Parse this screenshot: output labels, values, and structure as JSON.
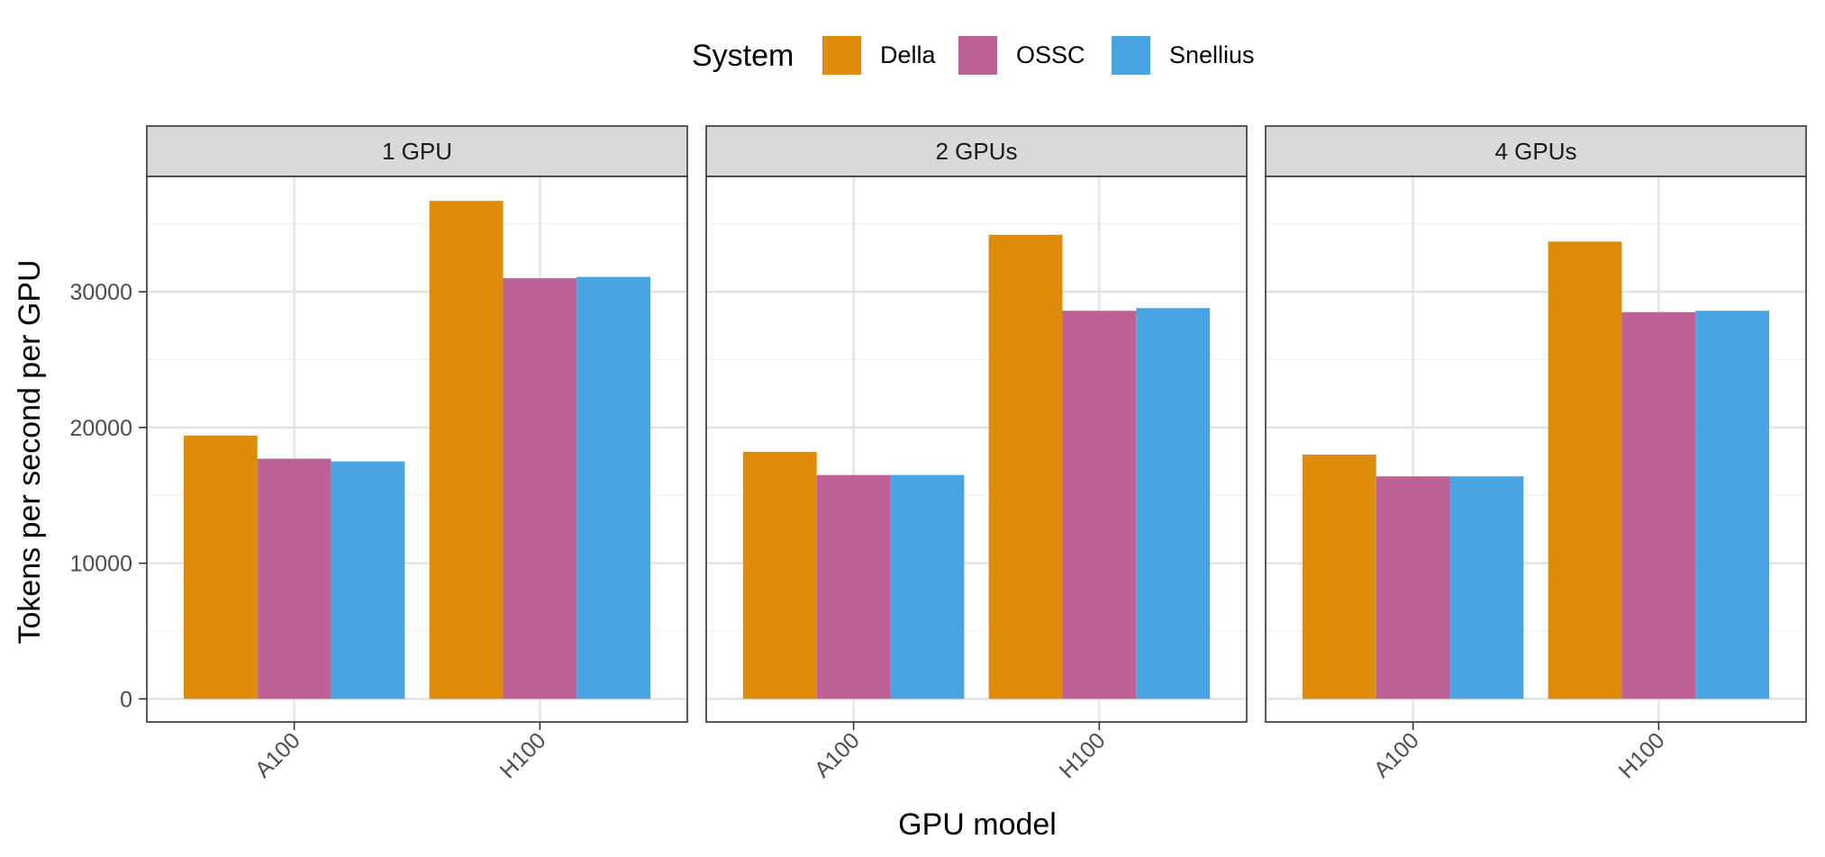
{
  "chart_data": {
    "type": "bar",
    "facets": [
      "1 GPU",
      "2 GPUs",
      "4 GPUs"
    ],
    "categories": [
      "A100",
      "H100"
    ],
    "series": [
      {
        "name": "Della",
        "color": "#DF8C0A",
        "values": [
          [
            19400,
            36700
          ],
          [
            18200,
            34200
          ],
          [
            18000,
            33700
          ]
        ]
      },
      {
        "name": "OSSC",
        "color": "#BE6195",
        "values": [
          [
            17700,
            31000
          ],
          [
            16500,
            28600
          ],
          [
            16400,
            28500
          ]
        ]
      },
      {
        "name": "Snellius",
        "color": "#49A5E2",
        "values": [
          [
            17500,
            31100
          ],
          [
            16500,
            28800
          ],
          [
            16400,
            28600
          ]
        ]
      }
    ],
    "xlabel": "GPU model",
    "ylabel": "Tokens per second per GPU",
    "ylim": [
      -1700,
      38500
    ],
    "yticks": [
      0,
      10000,
      20000,
      30000
    ],
    "legend": {
      "title": "System",
      "position": "top"
    },
    "grid": true
  }
}
